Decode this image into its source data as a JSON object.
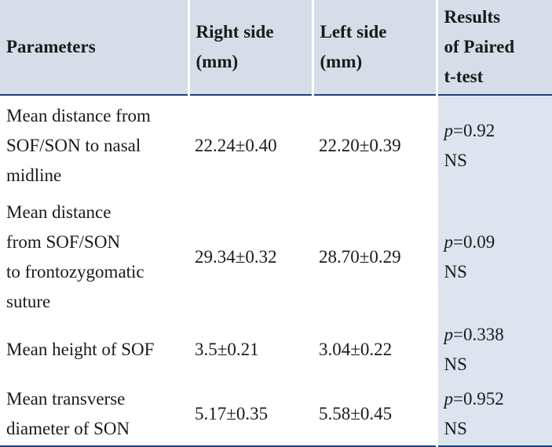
{
  "table": {
    "header": [
      [
        "Parameters"
      ],
      [
        "Right side",
        "(mm)"
      ],
      [
        "Left side",
        "(mm)"
      ],
      [
        "Results",
        "of Paired",
        "t-test"
      ]
    ],
    "rows": [
      [
        [
          "Mean distance from",
          "SOF/SON to nasal",
          "midline"
        ],
        [
          "22.24±0.40"
        ],
        [
          "22.20±0.39"
        ],
        [
          "p=0.92",
          "NS"
        ]
      ],
      [
        [
          "Mean distance",
          "from SOF/SON",
          "to frontozygomatic",
          "suture"
        ],
        [
          "29.34±0.32"
        ],
        [
          "28.70±0.29"
        ],
        [
          "p=0.09",
          "NS"
        ]
      ],
      [
        [
          "Mean height of SOF"
        ],
        [
          "3.5±0.21"
        ],
        [
          "3.04±0.22"
        ],
        [
          "p=0.338",
          "NS"
        ]
      ],
      [
        [
          "Mean transverse",
          "diameter of SON"
        ],
        [
          "5.17±0.35"
        ],
        [
          "5.58±0.45"
        ],
        [
          "p=0.952",
          "NS"
        ]
      ]
    ]
  }
}
